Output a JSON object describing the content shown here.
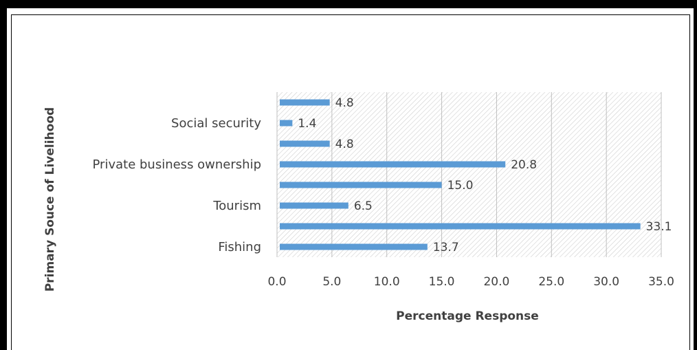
{
  "chart_data": {
    "type": "bar",
    "orientation": "horizontal",
    "categories": [
      "Fishing",
      "",
      "Tourism",
      "",
      "Private business ownership",
      "",
      "Social security",
      ""
    ],
    "values": [
      13.7,
      33.1,
      6.5,
      15.0,
      20.8,
      4.8,
      1.4,
      4.8
    ],
    "value_labels": [
      "13.7",
      "33.1",
      "6.5",
      "15.0",
      "20.8",
      "4.8",
      "1.4",
      "4.8"
    ],
    "xlabel": "Percentage Response",
    "ylabel": "Primary Souce of Livelihood",
    "xlim": [
      0,
      35
    ],
    "xticks": [
      0,
      5,
      10,
      15,
      20,
      25,
      30,
      35
    ],
    "xtick_labels": [
      "0.0",
      "5.0",
      "10.0",
      "15.0",
      "20.0",
      "25.0",
      "30.0",
      "35.0"
    ],
    "grid": true,
    "bar_color": "#5b9bd5",
    "plot_background": "hatched"
  }
}
